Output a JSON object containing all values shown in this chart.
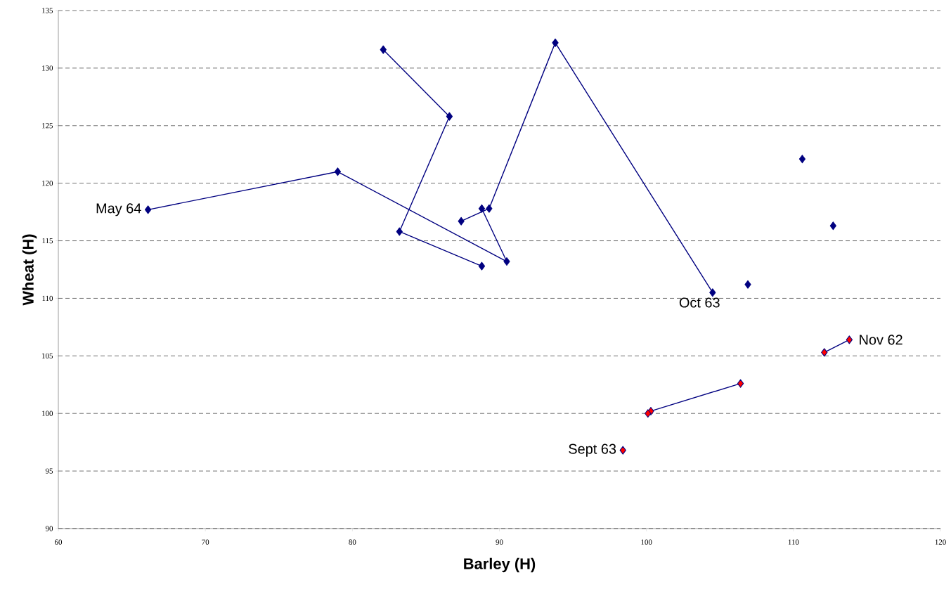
{
  "chart_data": {
    "type": "line",
    "xlabel": "Barley (H)",
    "ylabel": "Wheat (H)",
    "xlim": [
      60,
      120
    ],
    "xticks": [
      60,
      70,
      80,
      90,
      100,
      110,
      120
    ],
    "ylim": [
      90,
      135
    ],
    "yticks": [
      90,
      95,
      100,
      105,
      110,
      115,
      120,
      125,
      130,
      135
    ],
    "grid": "y",
    "marker": "diamond",
    "line_style": "solid",
    "series": [
      {
        "color": "#000080",
        "x": [
          104.5,
          93.8,
          89.3,
          87.4,
          null,
          88.8,
          90.5,
          79.0,
          66.1,
          null,
          82.1,
          86.6,
          83.2,
          88.8,
          null,
          106.9,
          null,
          110.6,
          null,
          112.7
        ],
        "values": [
          110.5,
          132.2,
          117.8,
          116.7,
          null,
          117.8,
          113.2,
          121.0,
          117.7,
          null,
          131.6,
          125.8,
          115.8,
          112.8,
          null,
          111.2,
          null,
          122.1,
          null,
          116.3
        ]
      },
      {
        "color": "#ff0000",
        "x": [
          113.8,
          112.1,
          null,
          106.4,
          100.3,
          null,
          100.1,
          null,
          98.4
        ],
        "values": [
          106.4,
          105.3,
          null,
          102.6,
          100.2,
          null,
          100.0,
          null,
          96.8
        ]
      }
    ],
    "annotations": [
      {
        "text": "May 64",
        "x": 66.1,
        "y": 117.7
      },
      {
        "text": "Oct 63",
        "x": 104.5,
        "y": 110.5
      },
      {
        "text": "Nov 62",
        "x": 113.8,
        "y": 106.4
      },
      {
        "text": "Sept 63",
        "x": 98.4,
        "y": 96.8
      }
    ]
  }
}
